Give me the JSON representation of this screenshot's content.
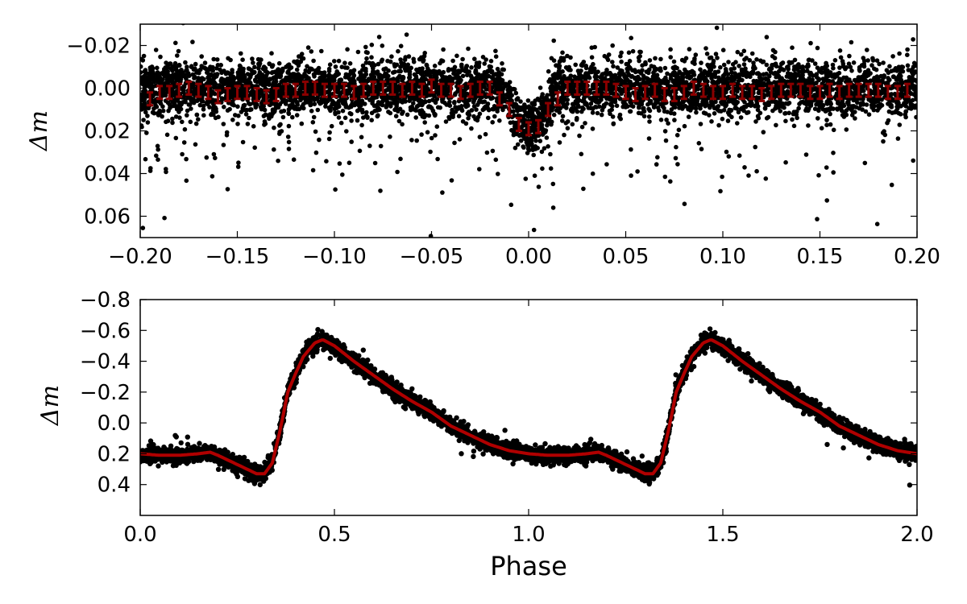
{
  "chart_data": [
    {
      "type": "scatter",
      "panel": "top",
      "title": "",
      "xlabel": "",
      "ylabel": "Δm",
      "xlim": [
        -0.2,
        0.2
      ],
      "ylim": [
        0.07,
        -0.03
      ],
      "y_inverted": true,
      "grid": false,
      "xticks": [
        -0.2,
        -0.15,
        -0.1,
        -0.05,
        0.0,
        0.05,
        0.1,
        0.15,
        0.2
      ],
      "xtick_labels": [
        "−0.20",
        "−0.15",
        "−0.10",
        "−0.05",
        "0.00",
        "0.05",
        "0.10",
        "0.15",
        "0.20"
      ],
      "yticks": [
        -0.02,
        0.0,
        0.02,
        0.04,
        0.06
      ],
      "ytick_labels": [
        "−0.02",
        "0.00",
        "0.02",
        "0.04",
        "0.06"
      ],
      "series": [
        {
          "kind": "scatter",
          "color": "#000000",
          "description_values": "dense black photometric points, scatter approx ±0.01 mag around 0.00 with outliers to 0.07; dip to ~0.02 near phase 0.00"
        },
        {
          "kind": "binned_errorbars",
          "color": "#8b0000",
          "x": [
            -0.195,
            -0.19,
            -0.185,
            -0.18,
            -0.175,
            -0.17,
            -0.165,
            -0.16,
            -0.155,
            -0.15,
            -0.145,
            -0.14,
            -0.135,
            -0.13,
            -0.125,
            -0.12,
            -0.115,
            -0.11,
            -0.105,
            -0.1,
            -0.095,
            -0.09,
            -0.085,
            -0.08,
            -0.075,
            -0.07,
            -0.065,
            -0.06,
            -0.055,
            -0.05,
            -0.045,
            -0.04,
            -0.035,
            -0.03,
            -0.025,
            -0.02,
            -0.015,
            -0.01,
            -0.005,
            0.0,
            0.005,
            0.01,
            0.015,
            0.02,
            0.025,
            0.03,
            0.035,
            0.04,
            0.045,
            0.05,
            0.055,
            0.06,
            0.065,
            0.07,
            0.075,
            0.08,
            0.085,
            0.09,
            0.095,
            0.1,
            0.105,
            0.11,
            0.115,
            0.12,
            0.125,
            0.13,
            0.135,
            0.14,
            0.145,
            0.15,
            0.155,
            0.16,
            0.165,
            0.17,
            0.175,
            0.18,
            0.185,
            0.19,
            0.195
          ],
          "y": [
            0.005,
            0.002,
            0.002,
            0.001,
            0.0,
            0.001,
            0.002,
            0.004,
            0.003,
            0.002,
            0.002,
            0.003,
            0.004,
            0.003,
            0.001,
            0.001,
            0.0,
            0.0,
            0.001,
            0.001,
            0.001,
            0.002,
            0.001,
            0.0,
            0.0,
            0.0,
            0.001,
            0.0,
            0.001,
            -0.001,
            0.001,
            0.001,
            0.002,
            0.001,
            0.0,
            0.0,
            0.005,
            0.01,
            0.017,
            0.019,
            0.018,
            0.01,
            0.005,
            0.0,
            0.0,
            0.0,
            0.0,
            0.0,
            0.001,
            0.002,
            0.003,
            0.002,
            0.001,
            0.003,
            0.003,
            0.002,
            0.0,
            0.001,
            0.002,
            0.002,
            0.001,
            0.002,
            0.002,
            0.003,
            0.002,
            0.001,
            0.001,
            0.001,
            0.002,
            0.002,
            0.001,
            0.002,
            0.001,
            0.001,
            0.001,
            0.001,
            0.002,
            0.002,
            0.001
          ],
          "yerr": 0.003
        }
      ]
    },
    {
      "type": "scatter",
      "panel": "bottom",
      "title": "",
      "xlabel": "Phase",
      "ylabel": "Δm",
      "xlim": [
        0.0,
        2.0
      ],
      "ylim": [
        0.6,
        -0.8
      ],
      "y_inverted": true,
      "grid": false,
      "xticks": [
        0.0,
        0.5,
        1.0,
        1.5,
        2.0
      ],
      "xtick_labels": [
        "0.0",
        "0.5",
        "1.0",
        "1.5",
        "2.0"
      ],
      "yticks": [
        -0.8,
        -0.6,
        -0.4,
        -0.2,
        0.0,
        0.2,
        0.4
      ],
      "ytick_labels": [
        "−0.8",
        "−0.6",
        "−0.4",
        "−0.2",
        "0.0",
        "0.2",
        "0.4"
      ],
      "series": [
        {
          "kind": "scatter",
          "color": "#000000",
          "description_values": "dense black photometric points following the model light curve with ~±0.04 mag scatter"
        },
        {
          "kind": "line",
          "color": "#b00000",
          "x": [
            0.0,
            0.05,
            0.1,
            0.15,
            0.18,
            0.2,
            0.25,
            0.3,
            0.32,
            0.34,
            0.36,
            0.38,
            0.4,
            0.42,
            0.45,
            0.47,
            0.5,
            0.55,
            0.6,
            0.65,
            0.7,
            0.75,
            0.8,
            0.85,
            0.9,
            0.95,
            1.0,
            1.05,
            1.1,
            1.15,
            1.18,
            1.2,
            1.25,
            1.3,
            1.32,
            1.34,
            1.36,
            1.38,
            1.4,
            1.42,
            1.45,
            1.47,
            1.5,
            1.55,
            1.6,
            1.65,
            1.7,
            1.75,
            1.8,
            1.85,
            1.9,
            1.95,
            2.0
          ],
          "y": [
            0.2,
            0.21,
            0.21,
            0.2,
            0.19,
            0.21,
            0.27,
            0.33,
            0.33,
            0.26,
            0.05,
            -0.2,
            -0.32,
            -0.43,
            -0.52,
            -0.54,
            -0.5,
            -0.4,
            -0.31,
            -0.22,
            -0.14,
            -0.07,
            0.02,
            0.08,
            0.14,
            0.18,
            0.2,
            0.21,
            0.21,
            0.2,
            0.19,
            0.21,
            0.27,
            0.33,
            0.33,
            0.26,
            0.05,
            -0.2,
            -0.32,
            -0.43,
            -0.52,
            -0.54,
            -0.5,
            -0.4,
            -0.31,
            -0.22,
            -0.14,
            -0.07,
            0.02,
            0.08,
            0.14,
            0.18,
            0.2
          ]
        }
      ]
    }
  ]
}
